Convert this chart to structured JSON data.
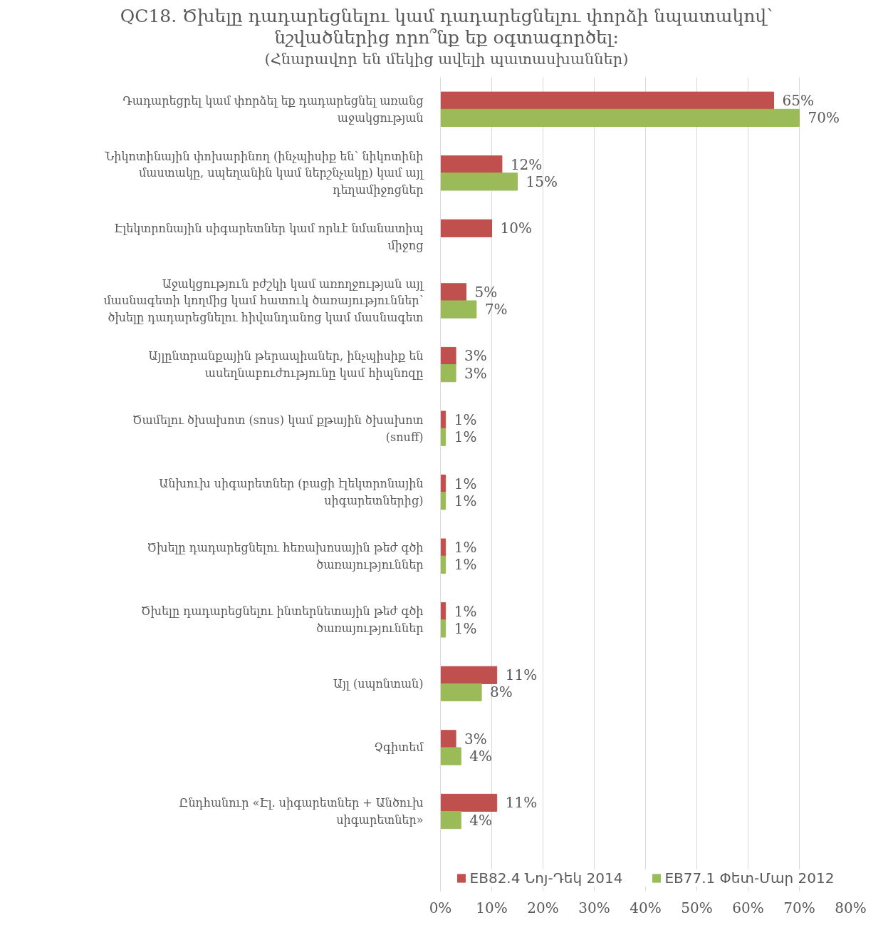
{
  "chart_data": {
    "type": "bar",
    "orientation": "horizontal",
    "title": "QC18. Ծխելը դադարեցնելու կամ դադարեցնելու փորձի նպատակով՝\nնշվածներից որո՞նք եք օգտագործել:",
    "subtitle": "(Հնարավոր են մեկից ավելի պատասխաններ)",
    "categories": [
      "Դադարեցրել կամ փորձել եք դադարեցնել առանց\nաջակցության",
      "Նիկոտինային փոխարինող (ինչպիսիք են՝ նիկոտինի\nմաստակը, սպեղանին կամ ներշնչակը) կամ այլ\nդեղամիջոցներ",
      "Էլեկտրոնային սիգարետներ կամ որևէ նմանատիպ\nմիջոց",
      "Աջակցություն բժշկի կամ առողջության այլ\nմասնագետի կողմից կամ հատուկ ծառայություններ՝\nծխելը դադարեցնելու հիվանդանոց կամ մասնագետ",
      "Այլընտրանքային թերապիաներ, ինչպիսիք են\nասեղնաբուժությունը կամ հիպնոզը",
      "Ծամելու ծխախոտ (snus) կամ քթային ծխախոտ\n(snuff)",
      "Անխուխ սիգարետներ (բացի էլեկտրոնային\nսիգարետներից)",
      "Ծխելը դադարեցնելու հեռախոսային թեժ գծի\nծառայություններ",
      "Ծխելը դադարեցնելու ինտերնետային թեժ գծի\nծառայություններ",
      "Այլ (սպոնտան)",
      "Չգիտեմ",
      "Ընդհանուր «Էլ. սիգարետներ + Անծուխ\nսիգարետներ»"
    ],
    "series": [
      {
        "name": "EB82.4 Նոյ-Դեկ 2014",
        "color": "#c0504d",
        "values": [
          65,
          12,
          10,
          5,
          3,
          1,
          1,
          1,
          1,
          11,
          3,
          11
        ],
        "value_labels": [
          "65%",
          "12%",
          "10%",
          "5%",
          "3%",
          "1%",
          "1%",
          "1%",
          "1%",
          "11%",
          "3%",
          "11%"
        ]
      },
      {
        "name": "EB77.1 Փետ-Մար 2012",
        "color": "#9bbb59",
        "values": [
          70,
          15,
          null,
          7,
          3,
          1,
          1,
          1,
          1,
          8,
          4,
          4
        ],
        "value_labels": [
          "70%",
          "15%",
          null,
          "7%",
          "3%",
          "1%",
          "1%",
          "1%",
          "1%",
          "8%",
          "4%",
          "4%"
        ]
      }
    ],
    "xlim": [
      0,
      80
    ],
    "xticks": [
      {
        "value": 0,
        "label": "0%"
      },
      {
        "value": 10,
        "label": "10%"
      },
      {
        "value": 20,
        "label": "20%"
      },
      {
        "value": 30,
        "label": "30%"
      },
      {
        "value": 40,
        "label": "40%"
      },
      {
        "value": 50,
        "label": "50%"
      },
      {
        "value": 60,
        "label": "60%"
      },
      {
        "value": 70,
        "label": "70%"
      },
      {
        "value": 80,
        "label": "80%"
      }
    ],
    "grid": "x",
    "legend": "bottom"
  }
}
